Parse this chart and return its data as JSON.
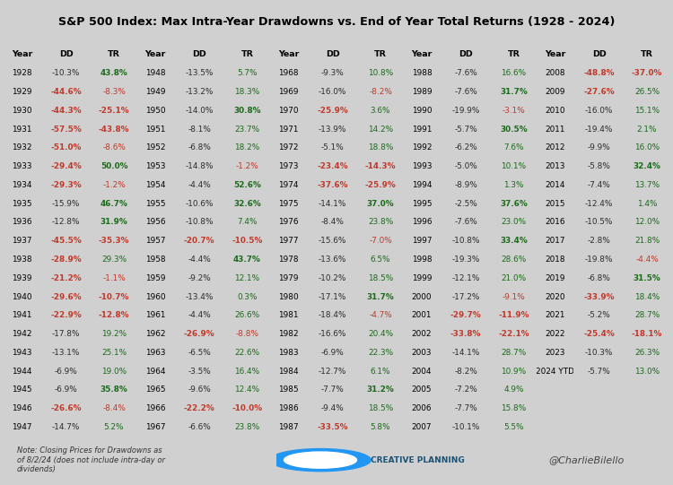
{
  "title": "S&P 500 Index: Max Intra-Year Drawdowns vs. End of Year Total Returns (1928 - 2024)",
  "title_bg": "#5bc8f5",
  "note": "Note: Closing Prices for Drawdowns as\nof 8/2/24 (does not include intra-day or\ndividends)",
  "watermark": "@CharlieBilello",
  "logo_text": "C  CREATIVE PLANNING",
  "bg_color": "#d0d0d0",
  "table_bg": "#ffffff",
  "footer_bg": "#d0d0d0",
  "data": [
    [
      1928,
      -10.3,
      43.8
    ],
    [
      1929,
      -44.6,
      -8.3
    ],
    [
      1930,
      -44.3,
      -25.1
    ],
    [
      1931,
      -57.5,
      -43.8
    ],
    [
      1932,
      -51.0,
      -8.6
    ],
    [
      1933,
      -29.4,
      50.0
    ],
    [
      1934,
      -29.3,
      -1.2
    ],
    [
      1935,
      -15.9,
      46.7
    ],
    [
      1936,
      -12.8,
      31.9
    ],
    [
      1937,
      -45.5,
      -35.3
    ],
    [
      1938,
      -28.9,
      29.3
    ],
    [
      1939,
      -21.2,
      -1.1
    ],
    [
      1940,
      -29.6,
      -10.7
    ],
    [
      1941,
      -22.9,
      -12.8
    ],
    [
      1942,
      -17.8,
      19.2
    ],
    [
      1943,
      -13.1,
      25.1
    ],
    [
      1944,
      -6.9,
      19.0
    ],
    [
      1945,
      -6.9,
      35.8
    ],
    [
      1946,
      -26.6,
      -8.4
    ],
    [
      1947,
      -14.7,
      5.2
    ],
    [
      1948,
      -13.5,
      5.7
    ],
    [
      1949,
      -13.2,
      18.3
    ],
    [
      1950,
      -14.0,
      30.8
    ],
    [
      1951,
      -8.1,
      23.7
    ],
    [
      1952,
      -6.8,
      18.2
    ],
    [
      1953,
      -14.8,
      -1.2
    ],
    [
      1954,
      -4.4,
      52.6
    ],
    [
      1955,
      -10.6,
      32.6
    ],
    [
      1956,
      -10.8,
      7.4
    ],
    [
      1957,
      -20.7,
      -10.5
    ],
    [
      1958,
      -4.4,
      43.7
    ],
    [
      1959,
      -9.2,
      12.1
    ],
    [
      1960,
      -13.4,
      0.3
    ],
    [
      1961,
      -4.4,
      26.6
    ],
    [
      1962,
      -26.9,
      -8.8
    ],
    [
      1963,
      -6.5,
      22.6
    ],
    [
      1964,
      -3.5,
      16.4
    ],
    [
      1965,
      -9.6,
      12.4
    ],
    [
      1966,
      -22.2,
      -10.0
    ],
    [
      1967,
      -6.6,
      23.8
    ],
    [
      1968,
      -9.3,
      10.8
    ],
    [
      1969,
      -16.0,
      -8.2
    ],
    [
      1970,
      -25.9,
      3.6
    ],
    [
      1971,
      -13.9,
      14.2
    ],
    [
      1972,
      -5.1,
      18.8
    ],
    [
      1973,
      -23.4,
      -14.3
    ],
    [
      1974,
      -37.6,
      -25.9
    ],
    [
      1975,
      -14.1,
      37.0
    ],
    [
      1976,
      -8.4,
      23.8
    ],
    [
      1977,
      -15.6,
      -7.0
    ],
    [
      1978,
      -13.6,
      6.5
    ],
    [
      1979,
      -10.2,
      18.5
    ],
    [
      1980,
      -17.1,
      31.7
    ],
    [
      1981,
      -18.4,
      -4.7
    ],
    [
      1982,
      -16.6,
      20.4
    ],
    [
      1983,
      -6.9,
      22.3
    ],
    [
      1984,
      -12.7,
      6.1
    ],
    [
      1985,
      -7.7,
      31.2
    ],
    [
      1986,
      -9.4,
      18.5
    ],
    [
      1987,
      -33.5,
      5.8
    ],
    [
      1988,
      -7.6,
      16.6
    ],
    [
      1989,
      -7.6,
      31.7
    ],
    [
      1990,
      -19.9,
      -3.1
    ],
    [
      1991,
      -5.7,
      30.5
    ],
    [
      1992,
      -6.2,
      7.6
    ],
    [
      1993,
      -5.0,
      10.1
    ],
    [
      1994,
      -8.9,
      1.3
    ],
    [
      1995,
      -2.5,
      37.6
    ],
    [
      1996,
      -7.6,
      23.0
    ],
    [
      1997,
      -10.8,
      33.4
    ],
    [
      1998,
      -19.3,
      28.6
    ],
    [
      1999,
      -12.1,
      21.0
    ],
    [
      2000,
      -17.2,
      -9.1
    ],
    [
      2001,
      -29.7,
      -11.9
    ],
    [
      2002,
      -33.8,
      -22.1
    ],
    [
      2003,
      -14.1,
      28.7
    ],
    [
      2004,
      -8.2,
      10.9
    ],
    [
      2005,
      -7.2,
      4.9
    ],
    [
      2006,
      -7.7,
      15.8
    ],
    [
      2007,
      -10.1,
      5.5
    ],
    [
      2008,
      -48.8,
      -37.0
    ],
    [
      2009,
      -27.6,
      26.5
    ],
    [
      2010,
      -16.0,
      15.1
    ],
    [
      2011,
      -19.4,
      2.1
    ],
    [
      2012,
      -9.9,
      16.0
    ],
    [
      2013,
      -5.8,
      32.4
    ],
    [
      2014,
      -7.4,
      13.7
    ],
    [
      2015,
      -12.4,
      1.4
    ],
    [
      2016,
      -10.5,
      12.0
    ],
    [
      2017,
      -2.8,
      21.8
    ],
    [
      2018,
      -19.8,
      -4.4
    ],
    [
      2019,
      -6.8,
      31.5
    ],
    [
      2020,
      -33.9,
      18.4
    ],
    [
      2021,
      -5.2,
      28.7
    ],
    [
      2022,
      -25.4,
      -18.1
    ],
    [
      2023,
      -10.3,
      26.3
    ],
    [
      "2024 YTD",
      -5.7,
      13.0
    ]
  ]
}
